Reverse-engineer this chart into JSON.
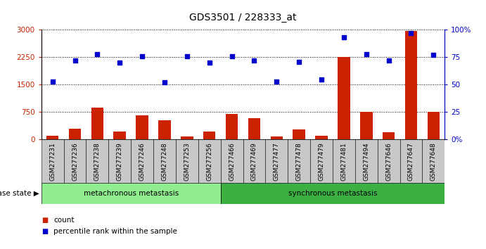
{
  "title": "GDS3501 / 228333_at",
  "samples": [
    "GSM277231",
    "GSM277236",
    "GSM277238",
    "GSM277239",
    "GSM277246",
    "GSM277248",
    "GSM277253",
    "GSM277256",
    "GSM277466",
    "GSM277469",
    "GSM277477",
    "GSM277478",
    "GSM277479",
    "GSM277481",
    "GSM277494",
    "GSM277646",
    "GSM277647",
    "GSM277648"
  ],
  "counts": [
    100,
    290,
    870,
    220,
    650,
    530,
    80,
    220,
    700,
    580,
    80,
    270,
    100,
    2250,
    750,
    190,
    2980,
    750
  ],
  "percentiles": [
    53,
    72,
    78,
    70,
    76,
    52,
    76,
    70,
    76,
    72,
    53,
    71,
    55,
    93,
    78,
    72,
    97,
    77
  ],
  "group1_count": 8,
  "group2_count": 10,
  "group1_label": "metachronous metastasis",
  "group2_label": "synchronous metastasis",
  "group1_color": "#90EE90",
  "group2_color": "#3CB043",
  "bar_color": "#CC2200",
  "dot_color": "#0000CC",
  "ylim_left": [
    0,
    3000
  ],
  "ylim_right": [
    0,
    100
  ],
  "yticks_left": [
    0,
    750,
    1500,
    2250,
    3000
  ],
  "yticks_right": [
    0,
    25,
    50,
    75,
    100
  ],
  "ytick_labels_left": [
    "0",
    "750",
    "1500",
    "2250",
    "3000"
  ],
  "ytick_labels_right": [
    "0%",
    "25",
    "50",
    "75",
    "100%"
  ],
  "label_count": "count",
  "label_percentile": "percentile rank within the sample",
  "disease_state_label": "disease state",
  "xtick_bg_color": "#C8C8C8",
  "bar_width": 0.55
}
